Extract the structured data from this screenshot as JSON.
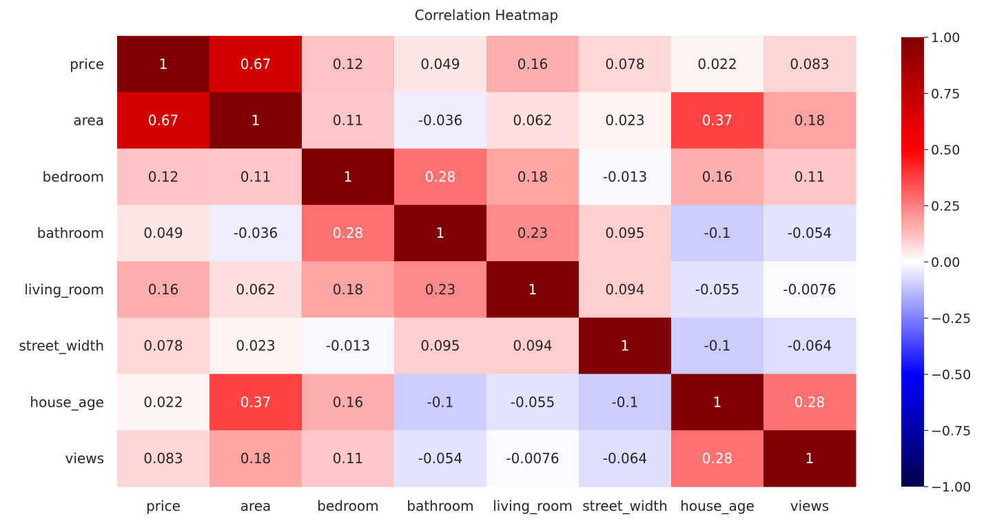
{
  "chart_data": {
    "type": "heatmap",
    "title": "Correlation Heatmap",
    "xlabel": "",
    "ylabel": "",
    "x_categories": [
      "price",
      "area",
      "bedroom",
      "bathroom",
      "living_room",
      "street_width",
      "house_age",
      "views"
    ],
    "y_categories": [
      "price",
      "area",
      "bedroom",
      "bathroom",
      "living_room",
      "street_width",
      "house_age",
      "views"
    ],
    "values": [
      [
        1,
        0.67,
        0.12,
        0.049,
        0.16,
        0.078,
        0.022,
        0.083
      ],
      [
        0.67,
        1,
        0.11,
        -0.036,
        0.062,
        0.023,
        0.37,
        0.18
      ],
      [
        0.12,
        0.11,
        1,
        0.28,
        0.18,
        -0.013,
        0.16,
        0.11
      ],
      [
        0.049,
        -0.036,
        0.28,
        1,
        0.23,
        0.095,
        -0.1,
        -0.054
      ],
      [
        0.16,
        0.062,
        0.18,
        0.23,
        1,
        0.094,
        -0.055,
        -0.0076
      ],
      [
        0.078,
        0.023,
        -0.013,
        0.095,
        0.094,
        1,
        -0.1,
        -0.064
      ],
      [
        0.022,
        0.37,
        0.16,
        -0.1,
        -0.055,
        -0.1,
        1,
        0.28
      ],
      [
        0.083,
        0.18,
        0.11,
        -0.054,
        -0.0076,
        -0.064,
        0.28,
        1
      ]
    ],
    "colorbar": {
      "range": [
        -1,
        1
      ],
      "ticks": [
        "1.00",
        "0.75",
        "0.50",
        "0.25",
        "0.00",
        "−0.25",
        "−0.50",
        "−0.75",
        "−1.00"
      ],
      "tick_values": [
        1,
        0.75,
        0.5,
        0.25,
        0,
        -0.25,
        -0.5,
        -0.75,
        -1
      ],
      "colormap": "seismic",
      "colormap_stops": [
        {
          "v": -1,
          "color": "#00004c"
        },
        {
          "v": -0.5,
          "color": "#0000ff"
        },
        {
          "v": 0,
          "color": "#ffffff"
        },
        {
          "v": 0.5,
          "color": "#ff0000"
        },
        {
          "v": 1,
          "color": "#7f0000"
        }
      ]
    },
    "annotation_colors": {
      "dark_text": "#262626",
      "light_text": "#ffffff"
    },
    "grid": false,
    "legend": "colorbar-right"
  }
}
